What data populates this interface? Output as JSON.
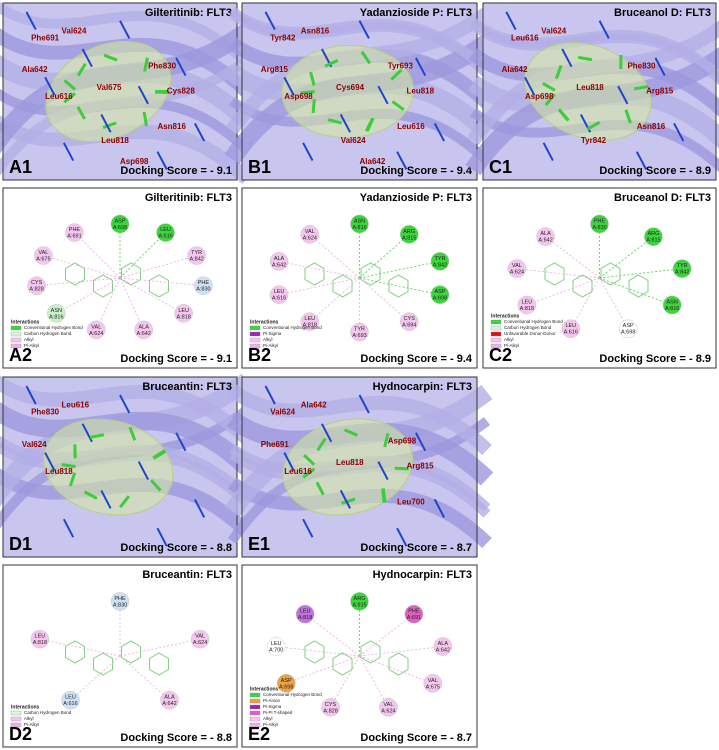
{
  "panels": [
    {
      "label": "A1",
      "title": "Gilteritinib: FLT3",
      "score": "Docking Score = - 9.1",
      "kind": "3d",
      "labels": [
        "Phe691",
        "Val624",
        "Ala642",
        "Leu616",
        "Val675",
        "Phe830",
        "Cys828",
        "Asn816",
        "Leu818",
        "Asp698"
      ]
    },
    {
      "label": "B1",
      "title": "Yadanzioside P: FLT3",
      "score": "Docking Score = - 9.4",
      "kind": "3d",
      "labels": [
        "Tyr842",
        "Asn816",
        "Arg815",
        "Asp698",
        "Cys694",
        "Tyr693",
        "Leu818",
        "Leu616",
        "Val624",
        "Ala642"
      ]
    },
    {
      "label": "C1",
      "title": "Bruceanol D: FLT3",
      "score": "Docking Score = - 8.9",
      "kind": "3d",
      "labels": [
        "Leu616",
        "Val624",
        "Ala642",
        "Asp698",
        "Leu818",
        "Phe830",
        "Arg815",
        "Asn816",
        "Tyr842"
      ]
    },
    {
      "label": "A2",
      "title": "Gilteritinib: FLT3",
      "score": "Docking Score = - 9.1",
      "kind": "2d",
      "residues": [
        [
          "ASP",
          "A:698",
          "#3cd63c"
        ],
        [
          "LEU",
          "A:616",
          "#3cd63c"
        ],
        [
          "TYR",
          "A:842",
          "#f4c6ee"
        ],
        [
          "PHE",
          "A:830",
          "#cfe0f6"
        ],
        [
          "LEU",
          "A:818",
          "#f4c6ee"
        ],
        [
          "ALA",
          "A:642",
          "#f4c6ee"
        ],
        [
          "VAL",
          "A:624",
          "#f4c6ee"
        ],
        [
          "ASN",
          "A:816",
          "#c8f0c8"
        ],
        [
          "CYS",
          "A:828",
          "#f4c6ee"
        ],
        [
          "VAL",
          "A:675",
          "#f4c6ee"
        ],
        [
          "PHE",
          "A:691",
          "#f4c6ee"
        ]
      ],
      "legend_title": "Interactions",
      "legend": [
        [
          "Conventional Hydrogen Bond",
          "#3cd63c"
        ],
        [
          "Carbon Hydrogen Bond",
          "#d9f5d9"
        ],
        [
          "Alkyl",
          "#f4c6ee"
        ],
        [
          "Pi-Alkyl",
          "#ecb4e6"
        ]
      ]
    },
    {
      "label": "B2",
      "title": "Yadanzioside P: FLT3",
      "score": "Docking Score = - 9.4",
      "kind": "2d",
      "residues": [
        [
          "ASN",
          "A:816",
          "#3cd63c"
        ],
        [
          "ARG",
          "A:815",
          "#3cd63c"
        ],
        [
          "TYR",
          "A:842",
          "#3cd63c"
        ],
        [
          "ASP",
          "A:698",
          "#3cd63c"
        ],
        [
          "CYS",
          "A:694",
          "#f4c6ee"
        ],
        [
          "TYR",
          "A:693",
          "#f4c6ee"
        ],
        [
          "LEU",
          "A:818",
          "#f4c6ee"
        ],
        [
          "LEU",
          "A:616",
          "#f4c6ee"
        ],
        [
          "ALA",
          "A:642",
          "#f4c6ee"
        ],
        [
          "VAL",
          "A:624",
          "#f4c6ee"
        ]
      ],
      "legend_title": "Interactions",
      "legend": [
        [
          "Conventional Hydrogen Bond",
          "#3cd63c"
        ],
        [
          "Pi-Sigma",
          "#a020c0"
        ],
        [
          "Alkyl",
          "#f4c6ee"
        ],
        [
          "Pi-Alkyl",
          "#ecb4e6"
        ]
      ]
    },
    {
      "label": "C2",
      "title": "Bruceanol D: FLT3",
      "score": "Docking Score = - 8.9",
      "kind": "2d",
      "residues": [
        [
          "PHE",
          "A:830",
          "#3cd63c"
        ],
        [
          "ARG",
          "A:815",
          "#3cd63c"
        ],
        [
          "TYR",
          "A:842",
          "#3cd63c"
        ],
        [
          "ASN",
          "A:816",
          "#3cd63c"
        ],
        [
          "ASP",
          "A:698",
          "#ffffff"
        ],
        [
          "LEU",
          "A:616",
          "#f4c6ee"
        ],
        [
          "LEU",
          "A:818",
          "#f4c6ee"
        ],
        [
          "VAL",
          "A:624",
          "#f4c6ee"
        ],
        [
          "ALA",
          "A:642",
          "#f4c6ee"
        ]
      ],
      "legend_title": "Interactions",
      "legend": [
        [
          "Conventional Hydrogen Bond",
          "#3cd63c"
        ],
        [
          "Carbon Hydrogen Bond",
          "#d9f5d9"
        ],
        [
          "Unfavorable Donor-Donor",
          "#e01010"
        ],
        [
          "Alkyl",
          "#f4c6ee"
        ],
        [
          "Pi-Alkyl",
          "#ecb4e6"
        ]
      ]
    },
    {
      "label": "D1",
      "title": "Bruceantin: FLT3",
      "score": "Docking Score = - 8.8",
      "kind": "3d",
      "labels": [
        "Phe830",
        "Leu616",
        "Val624",
        "Leu818"
      ]
    },
    {
      "label": "E1",
      "title": "Hydnocarpin: FLT3",
      "score": "Docking Score = - 8.7",
      "kind": "3d",
      "labels": [
        "Val624",
        "Ala642",
        "Phe691",
        "Leu616",
        "Leu818",
        "Asp698",
        "Arg815",
        "Leu700"
      ]
    },
    {
      "label": "D2",
      "title": "Bruceantin: FLT3",
      "score": "Docking Score = - 8.8",
      "kind": "2d",
      "residues": [
        [
          "PHE",
          "A:830",
          "#cfe0f6"
        ],
        [
          "VAL",
          "A:624",
          "#f4c6ee"
        ],
        [
          "ALA",
          "A:642",
          "#f4c6ee"
        ],
        [
          "LEU",
          "A:616",
          "#cfe0f6"
        ],
        [
          "LEU",
          "A:818",
          "#f4c6ee"
        ]
      ],
      "legend_title": "Interactions",
      "legend": [
        [
          "Carbon Hydrogen Bond",
          "#d9f5d9"
        ],
        [
          "Alkyl",
          "#f4c6ee"
        ],
        [
          "Pi-Alkyl",
          "#ecb4e6"
        ]
      ]
    },
    {
      "label": "E2",
      "title": "Hydnocarpin: FLT3",
      "score": "Docking Score = - 8.7",
      "kind": "2d",
      "residues": [
        [
          "ARG",
          "A:815",
          "#3cd63c"
        ],
        [
          "PHE",
          "A:691",
          "#e060c0"
        ],
        [
          "ALA",
          "A:642",
          "#f4c6ee"
        ],
        [
          "VAL",
          "A:675",
          "#f4c6ee"
        ],
        [
          "VAL",
          "A:624",
          "#f4c6ee"
        ],
        [
          "CYS",
          "A:828",
          "#f4c6ee"
        ],
        [
          "ASP",
          "A:698",
          "#f0a040"
        ],
        [
          "LEU",
          "A:700",
          "#ffffff"
        ],
        [
          "LEU",
          "A:818",
          "#c070e0"
        ]
      ],
      "legend_title": "Interactions",
      "legend": [
        [
          "Conventional Hydrogen Bond",
          "#3cd63c"
        ],
        [
          "Pi-Anion",
          "#f0a040"
        ],
        [
          "Pi-Sigma",
          "#a020c0"
        ],
        [
          "Pi-Pi T-shaped",
          "#e060c0"
        ],
        [
          "Alkyl",
          "#f4c6ee"
        ],
        [
          "Pi-Alkyl",
          "#ecb4e6"
        ]
      ]
    }
  ]
}
